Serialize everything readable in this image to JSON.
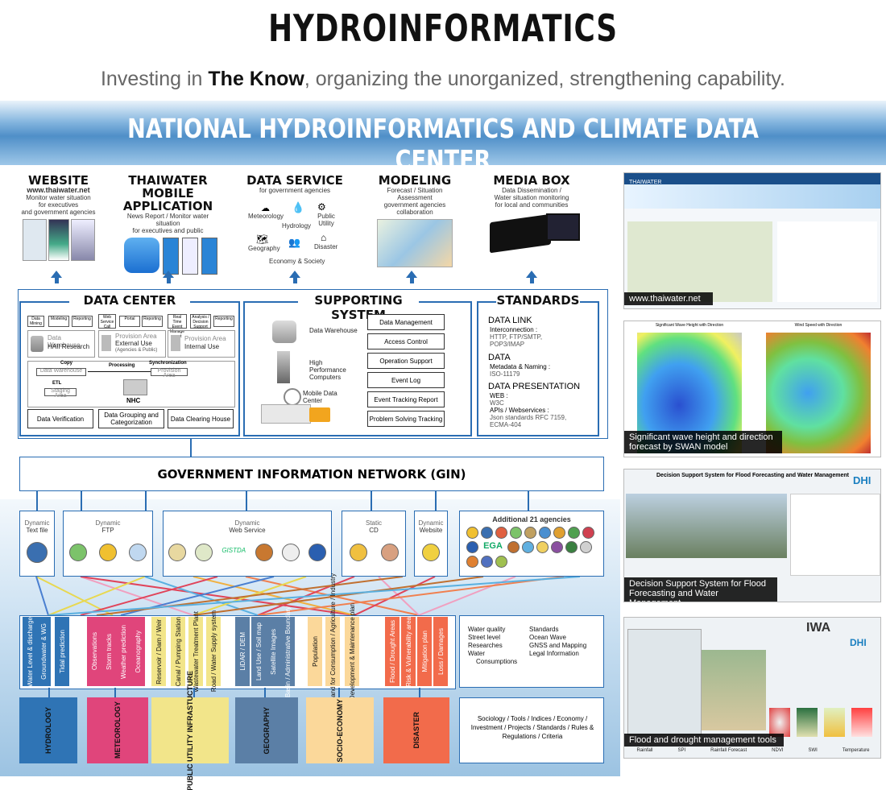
{
  "header": {
    "title": "HYDROINFORMATICS",
    "sub_pre": "Investing in ",
    "sub_bold": "The Know",
    "sub_post": ", organizing the unorganized,  strengthening capability.",
    "banner": "NATIONAL HYDROINFORMATICS AND CLIMATE DATA CENTER"
  },
  "channels": {
    "website": {
      "title": "WEBSITE",
      "sub1": "www.thaiwater.net",
      "sub2": "Monitor water situation",
      "sub3": "for executives",
      "sub4": "and government agencies"
    },
    "mobile": {
      "title1": "THAIWATER MOBILE",
      "title2": "APPLICATION",
      "sub1": "News Report / Monitor water situation",
      "sub2": "for executives and public"
    },
    "service": {
      "title": "DATA SERVICE",
      "sub": "for government agencies",
      "items": [
        "Meteorology",
        "Public Utility",
        "Hydrology",
        "Geography",
        "Disaster",
        "Economy & Society"
      ]
    },
    "modeling": {
      "title": "MODELING",
      "sub1": "Forecast / Situation Assessment",
      "sub2": "government agencies collaboration"
    },
    "media": {
      "title": "MEDIA BOX",
      "sub1": "Data Dissemination /",
      "sub2": "Water situation monitoring",
      "sub3": "for local and communities"
    }
  },
  "datacenter": {
    "title": "DATA CENTER",
    "left_tabs": [
      "Data Mining",
      "Modeling",
      "Reporting"
    ],
    "right_tabs": [
      "Web Service Call",
      "Portal",
      "Reporting",
      "Real Time Event Manage ment",
      "Analysis / Decision Support",
      "Reporting"
    ],
    "dw_label": "Data Warehouse",
    "haii": "HAII Research",
    "pa_label": "Provision Area",
    "external": "External Use",
    "ext_sub": "(Agencies & Public)",
    "pa2": "Provision Area",
    "internal": "Internal Use",
    "copy": "Copy",
    "processing": "Processing",
    "sync": "Synchronization",
    "dw2": "Data Warehouse",
    "pa3": "Provision Area",
    "etl": "ETL",
    "staging": "Staging Area",
    "nhc": "NHC",
    "bottom": [
      "Data Verification",
      "Data Grouping and Categorization",
      "Data Clearing House"
    ]
  },
  "supporting": {
    "title": "SUPPORTING SYSTEM",
    "icons": [
      "Data Warehouse",
      "High Performance Computers",
      "Mobile Data Center"
    ],
    "buttons": [
      "Data Management",
      "Access Control",
      "Operation Support",
      "Event Log",
      "Event Tracking Report",
      "Problem Solving Tracking"
    ]
  },
  "standards": {
    "title": "STANDARDS",
    "link": "DATA LINK",
    "link_k": "Interconnection :",
    "link_v1": "HTTP, FTP/SMTP,",
    "link_v2": "POP3/IMAP",
    "data": "DATA",
    "data_k": "Metadata & Naming :",
    "data_v": "ISO-11179",
    "pres": "DATA PRESENTATION",
    "pres_k": "WEB :",
    "pres_v": "W3C",
    "api_k": "APIs / Webservices :",
    "api_v1": "Json standards RFC 7159,",
    "api_v2": "ECMA-404"
  },
  "gin": {
    "title": "GOVERNMENT INFORMATION NETWORK (GIN)"
  },
  "sources": [
    {
      "t1": "Dynamic",
      "t2": "Text file"
    },
    {
      "t1": "Dynamic",
      "t2": "FTP"
    },
    {
      "t1": "Dynamic",
      "t2": "Web Service"
    },
    {
      "t1": "Static",
      "t2": "CD"
    },
    {
      "t1": "Dynamic",
      "t2": "Website"
    }
  ],
  "agencies": {
    "title": "Additional 21 agencies",
    "egа": "EGA"
  },
  "categories": [
    {
      "name": "HYDROLOGY",
      "color": "#2f74b5",
      "items": [
        "Water Level & discharge",
        "Groundwater & WG",
        "Tidal prediction"
      ]
    },
    {
      "name": "METEOROLOGY",
      "color": "#e0457b",
      "items": [
        "Observations",
        "Storm tracks",
        "Weather prediction",
        "Oceanography"
      ]
    },
    {
      "name": "PUBLIC UTILITY INFRASTUCTURE",
      "color": "#f2e58a",
      "items": [
        "Reservoir / Dam / Weir",
        "Canal / Pumping Station",
        "Wastewater Treatment Plant",
        "Road / Water Supply system"
      ]
    },
    {
      "name": "GEOGRAPHY",
      "color": "#5b7fa6",
      "items": [
        "LiDAR / DEM",
        "Land Use / Soil map",
        "Satellite Images",
        "Basin / Administrative Boundary"
      ]
    },
    {
      "name": "SOCIO-ECONOMY",
      "color": "#fbd89a",
      "items": [
        "Population",
        "Water Demand for Consumption / Agriculture / Industry",
        "Development & Maintenance plan"
      ]
    },
    {
      "name": "DISASTER",
      "color": "#f26b4b",
      "items": [
        "Flood / Drought Areas",
        "Risk & Vulnerability area",
        "Mitigation plan",
        "Loss / Damages"
      ]
    }
  ],
  "extra_col1": [
    "Water quality",
    "Street level",
    "Researches",
    "Water",
    "Consumptions"
  ],
  "extra_col2": [
    "Standards",
    "Ocean Wave",
    "GNSS and Mapping",
    "Legal Information"
  ],
  "sociology": "Sociology / Tools / Indices / Economy / Investment / Projects / Standards / Rules & Regulations / Criteria",
  "screens": {
    "s1": {
      "cap": "www.thaiwater.net",
      "logo": "THAIWATER"
    },
    "s2": {
      "cap1": "Significant wave height and direction",
      "cap2": "forecast by SWAN model",
      "t1": "Significant Wave Height with Direction",
      "t2": "Wind Speed with Direction"
    },
    "s3": {
      "cap1": "Decision Support System for Flood",
      "cap2": "Forecasting and Water Management",
      "head": "Decision Support System for Flood Forecasting and Water Management",
      "dhi": "DHI"
    },
    "s4": {
      "cap": "Flood and drought management tools",
      "iwa": "IWA",
      "dhi": "DHI",
      "legends": [
        "Rainfall",
        "SPI",
        "Rainfall Forecast",
        "NDVI",
        "SWI",
        "Temperature"
      ]
    }
  },
  "colors": {
    "accent": "#2a6db3"
  }
}
